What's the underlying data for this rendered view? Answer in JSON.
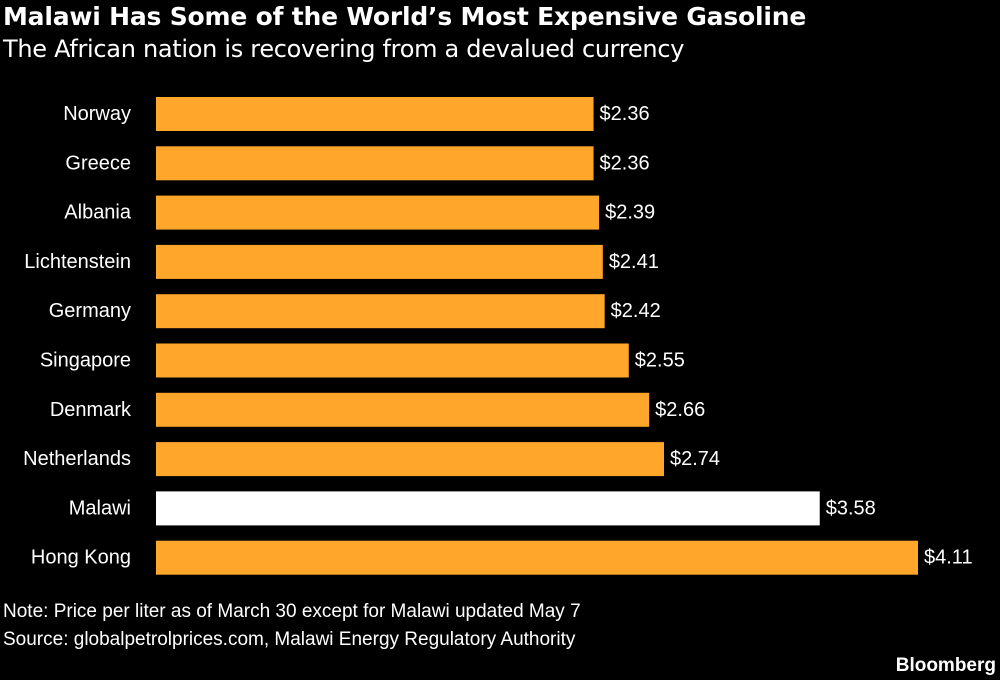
{
  "chart_data": {
    "type": "bar",
    "orientation": "horizontal",
    "title": "Malawi Has Some of the World’s Most Expensive Gasoline",
    "subtitle": "The African nation is recovering from a devalued currency",
    "categories": [
      "Norway",
      "Greece",
      "Albania",
      "Lichtenstein",
      "Germany",
      "Singapore",
      "Denmark",
      "Netherlands",
      "Malawi",
      "Hong Kong"
    ],
    "values": [
      2.36,
      2.36,
      2.39,
      2.41,
      2.42,
      2.55,
      2.66,
      2.74,
      3.58,
      4.11
    ],
    "data_labels": [
      "$2.36",
      "$2.36",
      "$2.39",
      "$2.41",
      "$2.42",
      "$2.55",
      "$2.66",
      "$2.74",
      "$3.58",
      "$4.11"
    ],
    "colors": [
      "#FFA62B",
      "#FFA62B",
      "#FFA62B",
      "#FFA62B",
      "#FFA62B",
      "#FFA62B",
      "#FFA62B",
      "#FFA62B",
      "#FFFFFF",
      "#FFA62B"
    ],
    "xlim": [
      0,
      4.11
    ],
    "grid": false,
    "xlabel": "",
    "ylabel": ""
  },
  "colors": {
    "background": "#000000",
    "text": "#FFFFFF",
    "bar": "#FFA62B",
    "highlight_bar": "#FFFFFF"
  },
  "footer": {
    "note": "Note: Price per liter as of March 30 except for Malawi updated May 7",
    "source": "Source: globalpetrolprices.com, Malawi Energy Regulatory Authority",
    "brand": "Bloomberg"
  }
}
